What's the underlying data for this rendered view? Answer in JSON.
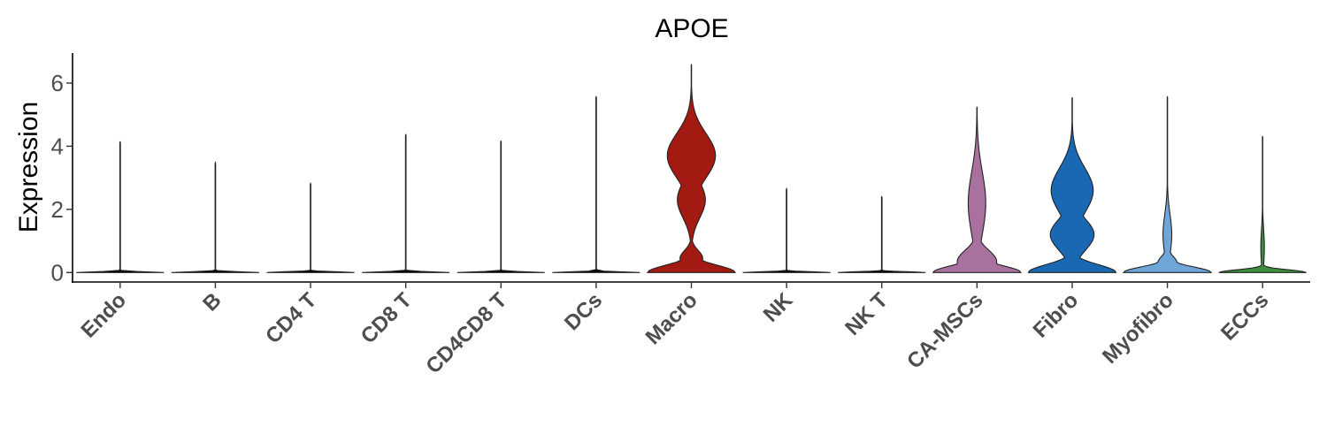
{
  "chart_data": {
    "type": "violin",
    "title": "APOE",
    "ylabel": "Expression",
    "xlabel": "",
    "ylim": [
      -0.3,
      6.95
    ],
    "yticks": [
      0,
      2,
      4,
      6
    ],
    "ytick_labels": [
      "0",
      "2",
      "4",
      "6"
    ],
    "grid": false,
    "legend": "none",
    "categories": [
      "Endo",
      "B",
      "CD4 T",
      "CD8 T",
      "CD4CD8 T",
      "DCs",
      "Macro",
      "NK",
      "NK T",
      "CA-MSCs",
      "Fibro",
      "Myofibro",
      "ECCs"
    ],
    "series": [
      {
        "category": "Endo",
        "max": 4.15,
        "color": "#000000"
      },
      {
        "category": "B",
        "max": 3.48,
        "color": "#000000"
      },
      {
        "category": "CD4 T",
        "max": 2.82,
        "color": "#000000"
      },
      {
        "category": "CD8 T",
        "max": 4.38,
        "color": "#000000"
      },
      {
        "category": "CD4CD8 T",
        "max": 4.17,
        "color": "#000000"
      },
      {
        "category": "DCs",
        "max": 5.58,
        "color": "#000000"
      },
      {
        "category": "Macro",
        "max": 6.6,
        "color": "#a31a12"
      },
      {
        "category": "NK",
        "max": 2.65,
        "color": "#000000"
      },
      {
        "category": "NK T",
        "max": 2.4,
        "color": "#000000"
      },
      {
        "category": "CA-MSCs",
        "max": 5.25,
        "color": "#a9719e"
      },
      {
        "category": "Fibro",
        "max": 5.55,
        "color": "#1a68b3"
      },
      {
        "category": "Myofibro",
        "max": 5.58,
        "color": "#6fa6d9"
      },
      {
        "category": "ECCs",
        "max": 4.32,
        "color": "#3c8f3c"
      }
    ]
  }
}
